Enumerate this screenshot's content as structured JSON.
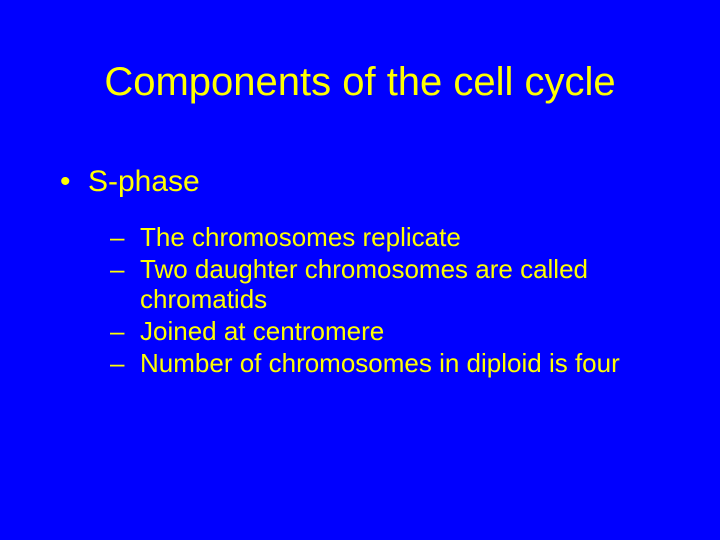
{
  "slide": {
    "background_color": "#0000ff",
    "text_color": "#ffff00",
    "title": "Components of the cell cycle",
    "title_fontsize": 40,
    "l1_fontsize": 30,
    "l2_fontsize": 26,
    "l1_marker": "•",
    "l2_marker": "–",
    "bullets_l1": [
      {
        "text": "S-phase",
        "children": [
          "The chromosomes replicate",
          "Two daughter chromosomes are called chromatids",
          "Joined at centromere",
          "Number of chromosomes in diploid is four"
        ]
      }
    ]
  }
}
